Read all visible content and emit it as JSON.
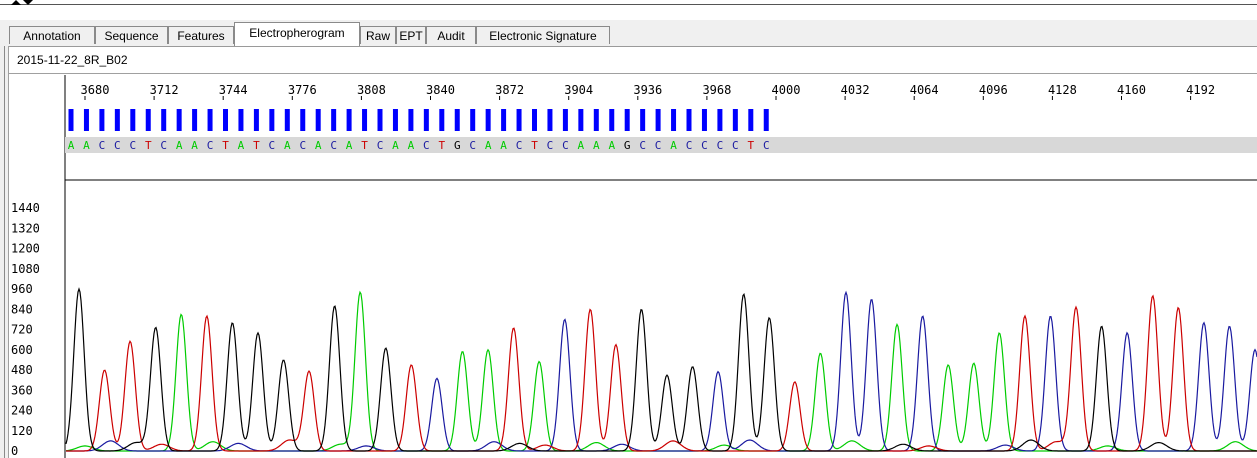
{
  "tabs": [
    {
      "label": "Annotation",
      "active": false
    },
    {
      "label": "Sequence",
      "active": false
    },
    {
      "label": "Features",
      "active": false
    },
    {
      "label": "Electropherogram",
      "active": true
    },
    {
      "label": "Raw",
      "active": false
    },
    {
      "label": "EPT",
      "active": false
    },
    {
      "label": "Audit",
      "active": false
    },
    {
      "label": "Electronic Signature",
      "active": false
    }
  ],
  "sample_name": "2015-11-22_8R_B02",
  "colors": {
    "A": "#00cc00",
    "C": "#1a1aa0",
    "G": "#000000",
    "T": "#cc0000",
    "quality": "#0000ff"
  },
  "chart_data": {
    "type": "line",
    "position_ticks": [
      3680,
      3712,
      3744,
      3776,
      3808,
      3840,
      3872,
      3904,
      3936,
      3968,
      4000,
      4032,
      4064,
      4096,
      4128,
      4160,
      4192
    ],
    "bases": "AACCCTCAACTATCACACATCAACTGCAACTCCAAAGCCACCCCTC",
    "quality_bars_visible": true,
    "ylim": [
      0,
      1500
    ],
    "yticks": [
      0,
      120,
      240,
      360,
      480,
      600,
      720,
      840,
      960,
      1080,
      1200,
      1320,
      1440
    ],
    "peaks": [
      {
        "base": "G",
        "height": 960
      },
      {
        "base": "T",
        "height": 480
      },
      {
        "base": "T",
        "height": 650
      },
      {
        "base": "G",
        "height": 730
      },
      {
        "base": "A",
        "height": 810
      },
      {
        "base": "T",
        "height": 800
      },
      {
        "base": "G",
        "height": 760
      },
      {
        "base": "G",
        "height": 700
      },
      {
        "base": "G",
        "height": 540
      },
      {
        "base": "T",
        "height": 470
      },
      {
        "base": "G",
        "height": 860
      },
      {
        "base": "A",
        "height": 940
      },
      {
        "base": "G",
        "height": 610
      },
      {
        "base": "T",
        "height": 510
      },
      {
        "base": "C",
        "height": 430
      },
      {
        "base": "A",
        "height": 590
      },
      {
        "base": "A",
        "height": 600
      },
      {
        "base": "T",
        "height": 730
      },
      {
        "base": "A",
        "height": 530
      },
      {
        "base": "C",
        "height": 780
      },
      {
        "base": "T",
        "height": 840
      },
      {
        "base": "T",
        "height": 630
      },
      {
        "base": "G",
        "height": 840
      },
      {
        "base": "G",
        "height": 450
      },
      {
        "base": "G",
        "height": 500
      },
      {
        "base": "C",
        "height": 470
      },
      {
        "base": "G",
        "height": 930
      },
      {
        "base": "G",
        "height": 790
      },
      {
        "base": "T",
        "height": 410
      },
      {
        "base": "A",
        "height": 580
      },
      {
        "base": "C",
        "height": 940
      },
      {
        "base": "C",
        "height": 900
      },
      {
        "base": "A",
        "height": 750
      },
      {
        "base": "C",
        "height": 800
      },
      {
        "base": "A",
        "height": 510
      },
      {
        "base": "A",
        "height": 520
      },
      {
        "base": "A",
        "height": 700
      },
      {
        "base": "T",
        "height": 800
      },
      {
        "base": "C",
        "height": 800
      },
      {
        "base": "T",
        "height": 850
      },
      {
        "base": "G",
        "height": 740
      },
      {
        "base": "C",
        "height": 700
      },
      {
        "base": "T",
        "height": 920
      },
      {
        "base": "T",
        "height": 850
      },
      {
        "base": "C",
        "height": 760
      },
      {
        "base": "C",
        "height": 740
      },
      {
        "base": "C",
        "height": 600
      }
    ]
  }
}
